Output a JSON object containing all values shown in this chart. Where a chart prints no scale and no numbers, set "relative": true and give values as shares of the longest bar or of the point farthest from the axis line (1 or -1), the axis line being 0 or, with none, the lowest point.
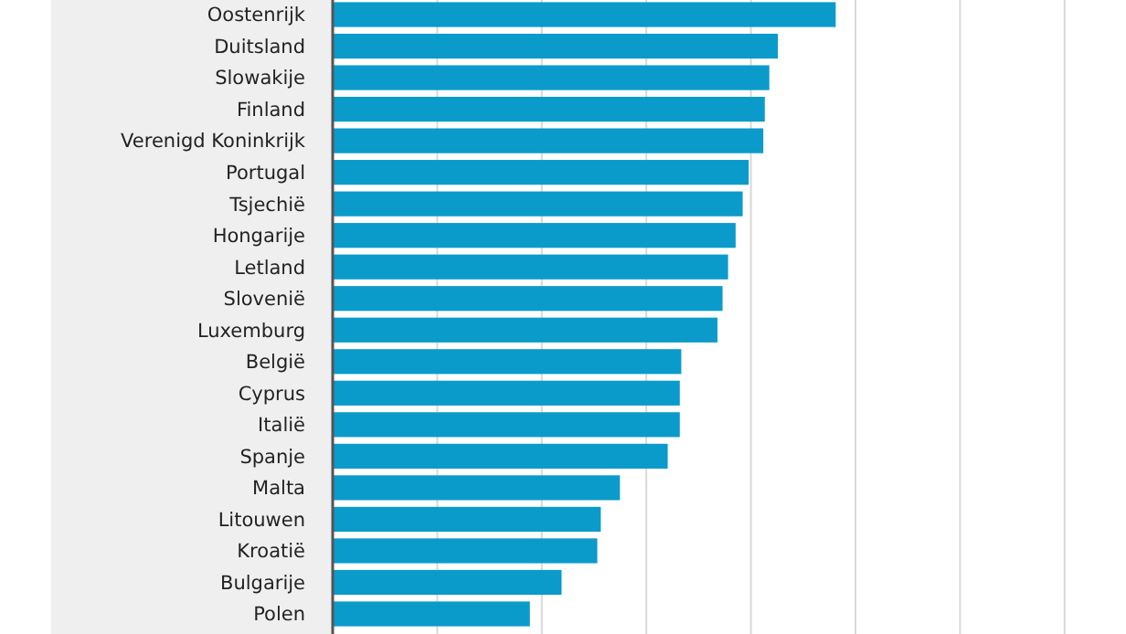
{
  "chart_data": {
    "type": "bar",
    "orientation": "horizontal",
    "relative": true,
    "grid": true,
    "color": "#0a9bcb",
    "categories": [
      "Oostenrijk",
      "Duitsland",
      "Slowakije",
      "Finland",
      "Verenigd Koninkrijk",
      "Portugal",
      "Tsjechië",
      "Hongarije",
      "Letland",
      "Slovenië",
      "Luxemburg",
      "België",
      "Cyprus",
      "Italië",
      "Spanje",
      "Malta",
      "Litouwen",
      "Kroatië",
      "Bulgarije",
      "Polen"
    ],
    "values": [
      1,
      0.885,
      0.868,
      0.859,
      0.856,
      0.827,
      0.815,
      0.801,
      0.786,
      0.775,
      0.765,
      0.693,
      0.69,
      0.69,
      0.666,
      0.571,
      0.533,
      0.526,
      0.455,
      0.392
    ]
  }
}
